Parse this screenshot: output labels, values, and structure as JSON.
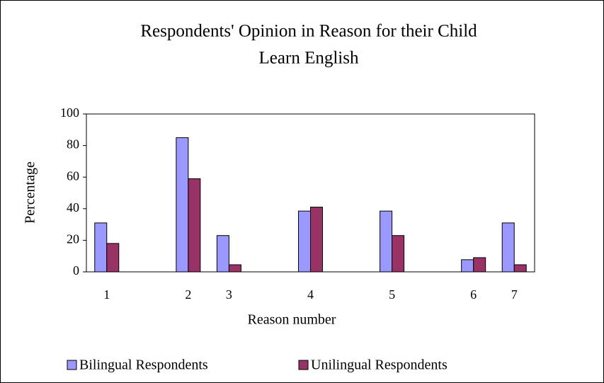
{
  "chart_data": {
    "type": "bar",
    "title": [
      "Respondents' Opinion in Reason for their Child",
      "Learn English"
    ],
    "x_label": "Reason number",
    "y_label": "Percentage",
    "categories": [
      "1",
      null,
      "2",
      "3",
      null,
      "4",
      null,
      "5",
      null,
      "6",
      "7"
    ],
    "series": [
      {
        "name": "Bilingual Respondents",
        "color": "#9999ff",
        "values": [
          31,
          null,
          85,
          23,
          null,
          38.5,
          null,
          38.5,
          null,
          7.7,
          31
        ]
      },
      {
        "name": "Unilingual Respondents",
        "color": "#993366",
        "values": [
          18,
          null,
          59,
          4.5,
          null,
          41,
          null,
          23,
          null,
          9,
          4.5
        ]
      }
    ],
    "ylim": [
      0,
      100
    ],
    "yticks": [
      0,
      20,
      40,
      60,
      80,
      100
    ],
    "legend": "bottom"
  }
}
